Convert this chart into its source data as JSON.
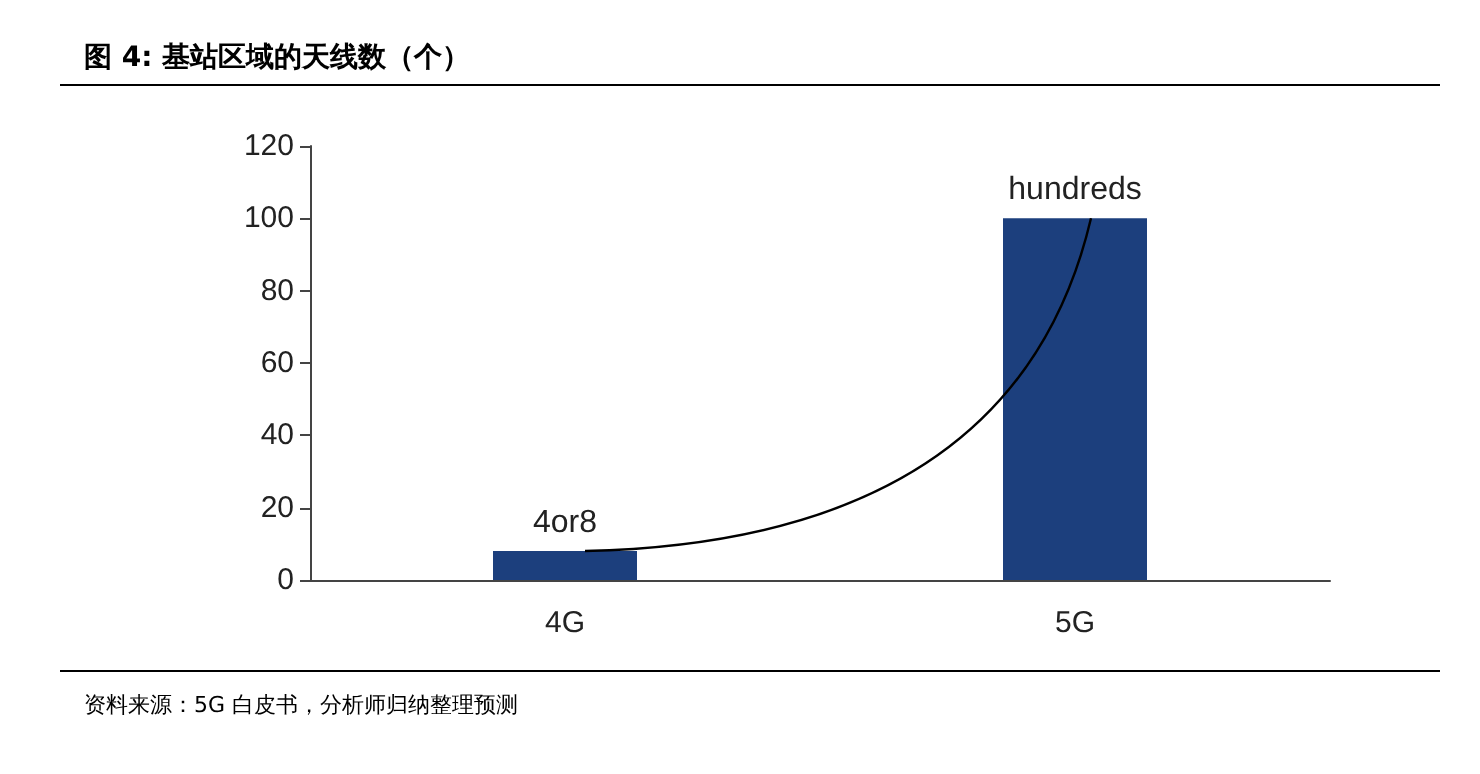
{
  "chart_data": {
    "type": "bar",
    "title": "图 4: 基站区域的天线数（个）",
    "categories": [
      "4G",
      "5G"
    ],
    "values": [
      8,
      100
    ],
    "value_labels": [
      "4or8",
      "hundreds"
    ],
    "color": "#1c3f7d",
    "ylim": [
      0,
      120
    ],
    "yticks": [
      0,
      20,
      40,
      60,
      80,
      100,
      120
    ],
    "grid": false,
    "annotations": [
      "资料来源：5G 白皮书，分析师归纳整理预测"
    ]
  }
}
